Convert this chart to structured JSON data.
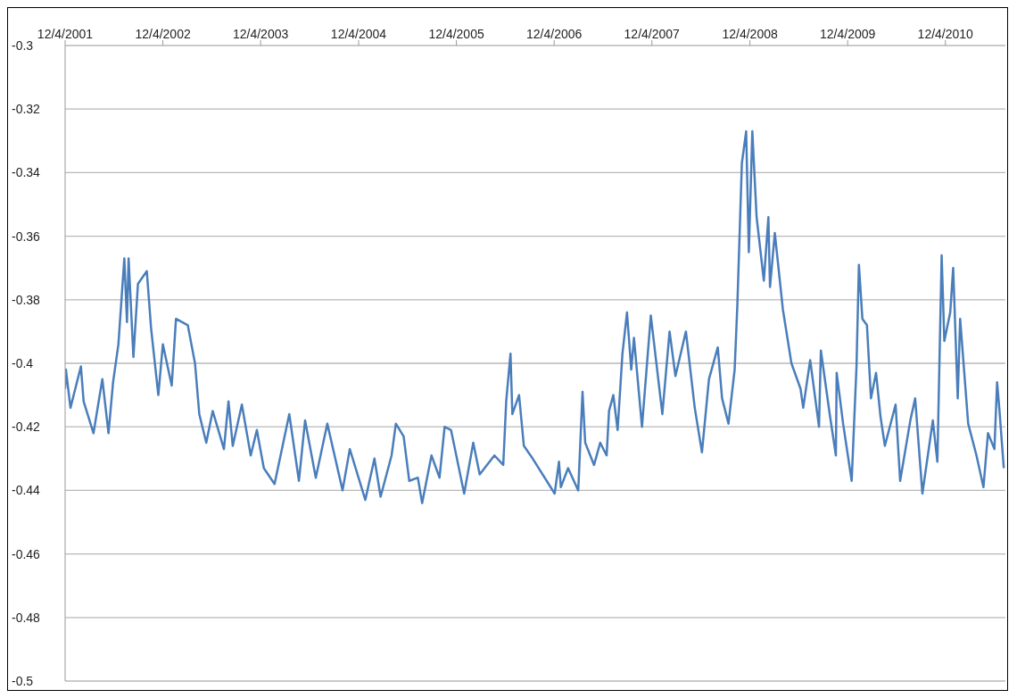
{
  "chart_data": {
    "type": "line",
    "x": [
      "2001-12-04",
      "2001-12-07",
      "2001-12-24",
      "2002-02-01",
      "2002-02-11",
      "2002-03-20",
      "2002-04-22",
      "2002-05-15",
      "2002-06-01",
      "2002-06-21",
      "2002-07-13",
      "2002-07-23",
      "2002-07-29",
      "2002-08-16",
      "2002-09-02",
      "2002-10-05",
      "2002-10-21",
      "2002-11-17",
      "2002-12-04",
      "2003-01-06",
      "2003-01-22",
      "2003-03-07",
      "2003-04-03",
      "2003-04-19",
      "2003-05-15",
      "2003-06-08",
      "2003-07-20",
      "2003-08-06",
      "2003-08-22",
      "2003-09-25",
      "2003-10-28",
      "2003-11-20",
      "2003-12-16",
      "2004-01-25",
      "2004-03-20",
      "2004-04-25",
      "2004-05-18",
      "2004-06-27",
      "2004-08-09",
      "2004-10-05",
      "2004-11-01",
      "2004-12-29",
      "2005-02-01",
      "2005-02-24",
      "2005-04-06",
      "2005-04-22",
      "2005-05-21",
      "2005-06-11",
      "2005-07-13",
      "2005-07-29",
      "2005-09-02",
      "2005-10-02",
      "2005-10-21",
      "2005-11-14",
      "2006-01-02",
      "2006-02-05",
      "2006-03-01",
      "2006-04-25",
      "2006-05-28",
      "2006-06-08",
      "2006-06-24",
      "2006-07-01",
      "2006-07-26",
      "2006-08-13",
      "2006-09-15",
      "2006-12-06",
      "2006-12-22",
      "2006-12-29",
      "2007-01-25",
      "2007-03-04",
      "2007-03-20",
      "2007-03-30",
      "2007-05-02",
      "2007-05-25",
      "2007-06-18",
      "2007-06-27",
      "2007-07-13",
      "2007-07-29",
      "2007-08-16",
      "2007-09-02",
      "2007-09-18",
      "2007-09-28",
      "2007-10-28",
      "2007-11-30",
      "2008-01-12",
      "2008-02-08",
      "2008-03-01",
      "2008-04-09",
      "2008-05-12",
      "2008-06-08",
      "2008-07-04",
      "2008-08-06",
      "2008-08-22",
      "2008-09-15",
      "2008-10-08",
      "2008-10-18",
      "2008-11-04",
      "2008-11-20",
      "2008-11-30",
      "2008-12-13",
      "2008-12-29",
      "2009-01-25",
      "2009-02-11",
      "2009-02-17",
      "2009-03-07",
      "2009-04-06",
      "2009-05-08",
      "2009-06-11",
      "2009-06-21",
      "2009-07-17",
      "2009-08-19",
      "2009-08-26",
      "2009-09-28",
      "2009-10-21",
      "2009-10-24",
      "2009-11-17",
      "2009-12-19",
      "2010-01-06",
      "2010-01-15",
      "2010-01-28",
      "2010-02-14",
      "2010-03-01",
      "2010-03-20",
      "2010-04-06",
      "2010-04-22",
      "2010-06-01",
      "2010-06-18",
      "2010-07-26",
      "2010-08-13",
      "2010-09-09",
      "2010-10-18",
      "2010-11-04",
      "2010-11-20",
      "2010-11-30",
      "2010-12-22",
      "2011-01-02",
      "2011-01-19",
      "2011-01-28",
      "2011-02-27",
      "2011-03-30",
      "2011-04-25",
      "2011-05-12",
      "2011-06-05",
      "2011-06-15",
      "2011-06-24",
      "2011-07-10"
    ],
    "series": [
      {
        "color": "#4a7ebb",
        "values": [
          -0.408,
          -0.402,
          -0.414,
          -0.401,
          -0.412,
          -0.422,
          -0.405,
          -0.422,
          -0.406,
          -0.394,
          -0.367,
          -0.387,
          -0.367,
          -0.398,
          -0.375,
          -0.371,
          -0.389,
          -0.41,
          -0.394,
          -0.407,
          -0.386,
          -0.388,
          -0.4,
          -0.416,
          -0.425,
          -0.415,
          -0.427,
          -0.412,
          -0.426,
          -0.413,
          -0.429,
          -0.421,
          -0.433,
          -0.438,
          -0.416,
          -0.437,
          -0.418,
          -0.436,
          -0.419,
          -0.44,
          -0.427,
          -0.443,
          -0.43,
          -0.442,
          -0.429,
          -0.419,
          -0.423,
          -0.437,
          -0.436,
          -0.444,
          -0.429,
          -0.436,
          -0.42,
          -0.421,
          -0.441,
          -0.425,
          -0.435,
          -0.429,
          -0.432,
          -0.412,
          -0.397,
          -0.416,
          -0.41,
          -0.426,
          -0.43,
          -0.441,
          -0.431,
          -0.439,
          -0.433,
          -0.44,
          -0.409,
          -0.425,
          -0.432,
          -0.425,
          -0.429,
          -0.415,
          -0.41,
          -0.421,
          -0.397,
          -0.384,
          -0.402,
          -0.392,
          -0.42,
          -0.385,
          -0.416,
          -0.39,
          -0.404,
          -0.39,
          -0.414,
          -0.428,
          -0.405,
          -0.395,
          -0.411,
          -0.419,
          -0.402,
          -0.382,
          -0.337,
          -0.327,
          -0.365,
          -0.327,
          -0.354,
          -0.374,
          -0.354,
          -0.376,
          -0.359,
          -0.383,
          -0.4,
          -0.408,
          -0.414,
          -0.399,
          -0.42,
          -0.396,
          -0.416,
          -0.429,
          -0.403,
          -0.419,
          -0.437,
          -0.401,
          -0.369,
          -0.386,
          -0.388,
          -0.411,
          -0.403,
          -0.417,
          -0.426,
          -0.413,
          -0.437,
          -0.418,
          -0.411,
          -0.441,
          -0.418,
          -0.431,
          -0.366,
          -0.393,
          -0.384,
          -0.37,
          -0.411,
          -0.386,
          -0.419,
          -0.429,
          -0.439,
          -0.422,
          -0.427,
          -0.406,
          -0.415,
          -0.433
        ]
      }
    ],
    "xlim": [
      "2001-12-04",
      "2011-07-16"
    ],
    "xticks": [
      {
        "value": "2001-12-04",
        "label": "12/4/2001"
      },
      {
        "value": "2002-12-04",
        "label": "12/4/2002"
      },
      {
        "value": "2003-12-04",
        "label": "12/4/2003"
      },
      {
        "value": "2004-12-04",
        "label": "12/4/2004"
      },
      {
        "value": "2005-12-04",
        "label": "12/4/2005"
      },
      {
        "value": "2006-12-04",
        "label": "12/4/2006"
      },
      {
        "value": "2007-12-04",
        "label": "12/4/2007"
      },
      {
        "value": "2008-12-04",
        "label": "12/4/2008"
      },
      {
        "value": "2009-12-04",
        "label": "12/4/2009"
      },
      {
        "value": "2010-12-04",
        "label": "12/4/2010"
      }
    ],
    "ylim": [
      -0.5,
      -0.3
    ],
    "yticks": [
      -0.5,
      -0.48,
      -0.46,
      -0.44,
      -0.42,
      -0.4,
      -0.38,
      -0.36,
      -0.34,
      -0.32,
      -0.3
    ],
    "grid": "y",
    "legend": false,
    "marker": "none",
    "line_style": "solid"
  }
}
